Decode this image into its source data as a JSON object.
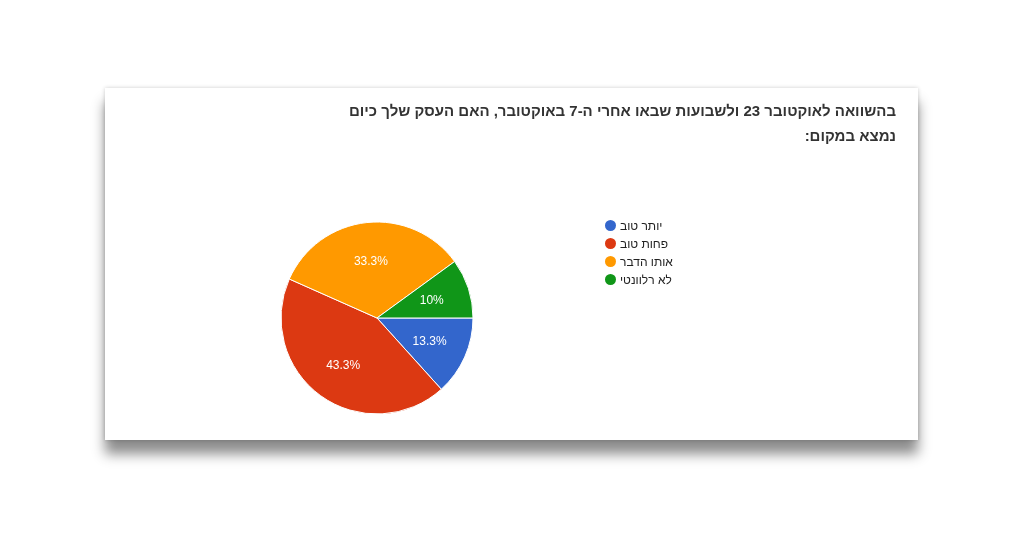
{
  "chart_data": {
    "type": "pie",
    "title": "בהשוואה לאוקטובר 23 ולשבועות שבאו אחרי ה-7 באוקטובר, האם העסק שלך כיום נמצא במקום:",
    "categories": [
      "יותר טוב",
      "פחות טוב",
      "אותו הדבר",
      "לא רלוונטי"
    ],
    "values": [
      13.3,
      43.3,
      33.3,
      10
    ],
    "colors": [
      "#3366cc",
      "#dc3912",
      "#ff9900",
      "#109618"
    ],
    "value_labels": [
      "13.3%",
      "43.3%",
      "33.3%",
      "10%"
    ],
    "legend": "right"
  }
}
